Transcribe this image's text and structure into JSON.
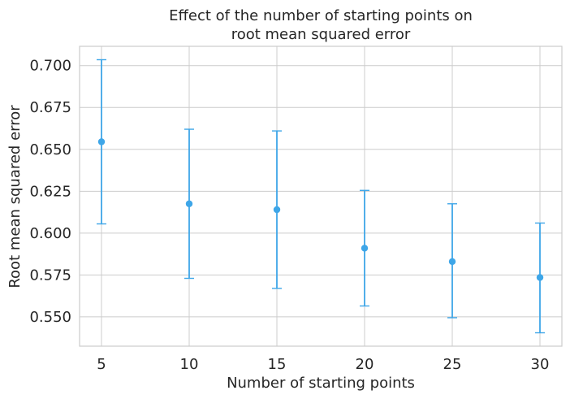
{
  "chart_data": {
    "type": "scatter",
    "title_lines": [
      "Effect of the number of starting points on",
      "root mean squared error"
    ],
    "xlabel": "Number of starting points",
    "ylabel": "Root mean squared error",
    "x": [
      5,
      10,
      15,
      20,
      25,
      30
    ],
    "series": [
      {
        "mean": [
          0.6545,
          0.6175,
          0.614,
          0.591,
          0.583,
          0.5735
        ],
        "upper": [
          0.7035,
          0.662,
          0.661,
          0.6255,
          0.6175,
          0.606
        ],
        "lower": [
          0.6055,
          0.573,
          0.567,
          0.5565,
          0.5495,
          0.5405
        ]
      }
    ],
    "xticks": [
      5,
      10,
      15,
      20,
      25,
      30
    ],
    "xtick_labels": [
      "5",
      "10",
      "15",
      "20",
      "25",
      "30"
    ],
    "yticks": [
      0.55,
      0.575,
      0.6,
      0.625,
      0.65,
      0.675,
      0.7
    ],
    "ytick_labels": [
      "0.550",
      "0.575",
      "0.600",
      "0.625",
      "0.650",
      "0.675",
      "0.700"
    ],
    "xlim": [
      3.75,
      31.25
    ],
    "ylim": [
      0.5325,
      0.7115
    ],
    "grid": true,
    "color": "#3ea6e8"
  }
}
